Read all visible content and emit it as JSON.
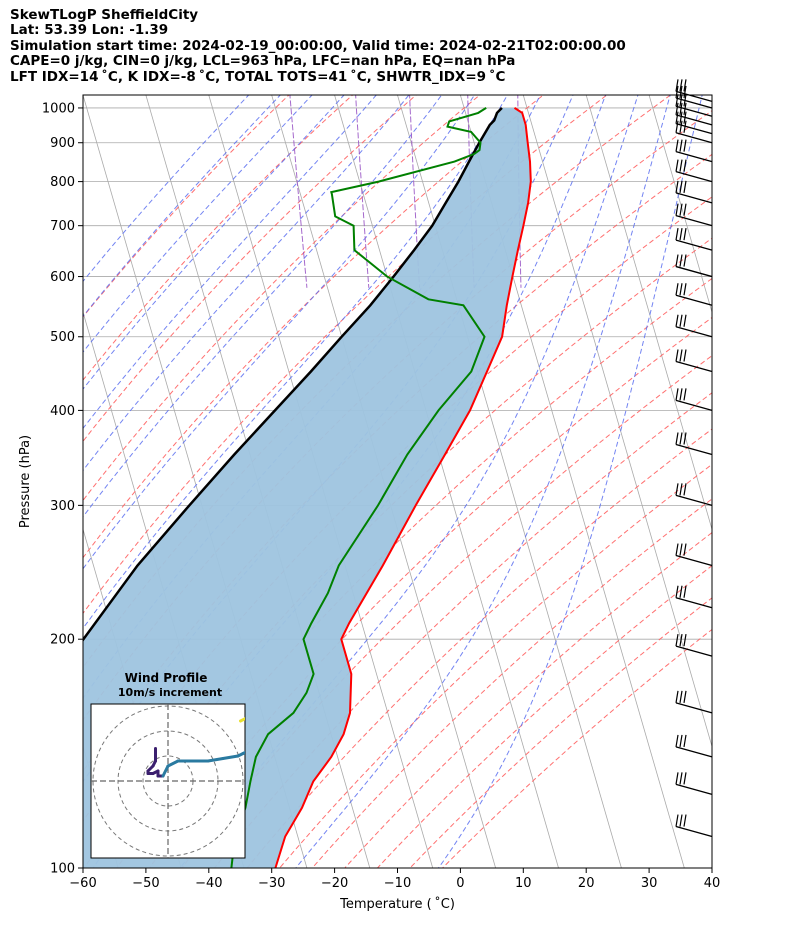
{
  "header": {
    "title_line": "SkewTLogP SheffieldCity",
    "location_line": "Lat: 53.39   Lon: -1.39",
    "time_line": "Simulation start time: 2024-02-19_00:00:00, Valid time: 2024-02-21T02:00:00.00",
    "params_line": "CAPE=0 j/kg, CIN=0 j/kg, LCL=963 hPa, LFC=nan hPa, EQ=nan hPa",
    "indices_line": "LFT IDX=14 ˚C, K IDX=-8 ˚C, TOTAL TOTS=41 ˚C, SHWTR_IDX=9 ˚C"
  },
  "chart_data": {
    "type": "line",
    "subtype": "skew-t log-p",
    "xlabel": "Temperature ( ˚C)",
    "ylabel": "Pressure (hPa)",
    "xlim": [
      -60,
      40
    ],
    "ylim": [
      1040,
      100
    ],
    "x_ticks": [
      -60,
      -50,
      -40,
      -30,
      -20,
      -10,
      0,
      10,
      20,
      30,
      40
    ],
    "y_ticks": [
      100,
      200,
      300,
      400,
      500,
      600,
      700,
      800,
      900,
      1000
    ],
    "y_scale": "log",
    "skew_deg_per_decade": 35,
    "grid": true,
    "colors": {
      "temperature": "#ff0000",
      "dewpoint": "#008000",
      "parcel": "#000000",
      "cape_fill": "#9ec4df",
      "dry_adiabats": "#ff6060",
      "moist_adiabats": "#5a6ef0",
      "mixing_ratio": "#9b59c7",
      "isotherms": "#aaaaaa"
    },
    "series": [
      {
        "role": "temperature",
        "points": [
          [
            1000,
            8
          ],
          [
            985,
            9
          ],
          [
            950,
            9
          ],
          [
            900,
            8.5
          ],
          [
            850,
            8
          ],
          [
            800,
            7.2
          ],
          [
            750,
            5.8
          ],
          [
            700,
            4
          ],
          [
            650,
            2
          ],
          [
            600,
            -0.1
          ],
          [
            550,
            -2.3
          ],
          [
            500,
            -4.5
          ],
          [
            450,
            -8.5
          ],
          [
            400,
            -13
          ],
          [
            350,
            -19
          ],
          [
            300,
            -26
          ],
          [
            250,
            -34
          ],
          [
            210,
            -42
          ],
          [
            200,
            -44
          ],
          [
            180,
            -44
          ],
          [
            160,
            -46
          ],
          [
            150,
            -48
          ],
          [
            140,
            -51
          ],
          [
            130,
            -55
          ],
          [
            120,
            -58
          ],
          [
            110,
            -62
          ],
          [
            100,
            -65
          ]
        ]
      },
      {
        "role": "dewpoint",
        "points": [
          [
            1000,
            3.5
          ],
          [
            985,
            2
          ],
          [
            960,
            -3
          ],
          [
            945,
            -3.5
          ],
          [
            930,
            0
          ],
          [
            900,
            1
          ],
          [
            880,
            0.5
          ],
          [
            870,
            -0.5
          ],
          [
            850,
            -4
          ],
          [
            800,
            -17
          ],
          [
            775,
            -25
          ],
          [
            770,
            -25
          ],
          [
            720,
            -25.5
          ],
          [
            700,
            -23
          ],
          [
            650,
            -24
          ],
          [
            600,
            -20
          ],
          [
            560,
            -14.5
          ],
          [
            550,
            -9.2
          ],
          [
            500,
            -7.3
          ],
          [
            450,
            -11
          ],
          [
            400,
            -18
          ],
          [
            350,
            -25
          ],
          [
            300,
            -32
          ],
          [
            250,
            -41
          ],
          [
            230,
            -44
          ],
          [
            210,
            -48
          ],
          [
            200,
            -50
          ],
          [
            190,
            -50
          ],
          [
            180,
            -50
          ],
          [
            170,
            -52
          ],
          [
            160,
            -55
          ],
          [
            150,
            -60
          ],
          [
            140,
            -63
          ],
          [
            130,
            -65
          ],
          [
            120,
            -67
          ],
          [
            110,
            -70
          ],
          [
            100,
            -72
          ]
        ]
      },
      {
        "role": "parcel",
        "points": [
          [
            1000,
            6
          ],
          [
            985,
            5
          ],
          [
            963,
            4.2
          ],
          [
            950,
            3.3
          ],
          [
            900,
            0.8
          ],
          [
            850,
            -1.7
          ],
          [
            800,
            -4.3
          ],
          [
            750,
            -7.3
          ],
          [
            700,
            -10.5
          ],
          [
            650,
            -14.5
          ],
          [
            600,
            -19
          ],
          [
            550,
            -24
          ],
          [
            500,
            -30
          ],
          [
            450,
            -36.5
          ],
          [
            400,
            -44
          ],
          [
            350,
            -52.5
          ],
          [
            300,
            -62
          ],
          [
            250,
            -73
          ],
          [
            200,
            -85
          ],
          [
            150,
            -99
          ],
          [
            100,
            -117
          ]
        ]
      }
    ],
    "wind_barbs_pressure_hpa": [
      1020,
      1000,
      975,
      950,
      925,
      900,
      850,
      800,
      750,
      700,
      650,
      600,
      550,
      500,
      450,
      400,
      350,
      300,
      250,
      220,
      190,
      160,
      140,
      125,
      110
    ],
    "inset": {
      "title": "Wind Profile",
      "subtitle": "10m/s increment",
      "rings_ms": [
        10,
        20,
        30
      ],
      "hodograph_u": [
        -5,
        -5,
        -5,
        -6,
        -8,
        -8,
        -6,
        -4,
        -4,
        -2,
        0,
        4,
        10,
        16,
        22,
        28,
        30,
        32,
        35
      ],
      "hodograph_v": [
        -13,
        -10,
        -8,
        -6,
        -4,
        -3,
        -3,
        -4,
        -2,
        -2,
        -6,
        -8,
        -8,
        -8,
        -9,
        -10,
        -11,
        -12,
        -13
      ],
      "surface_u": [
        29,
        31,
        33
      ],
      "surface_v": [
        -24,
        -25,
        -24
      ]
    }
  }
}
